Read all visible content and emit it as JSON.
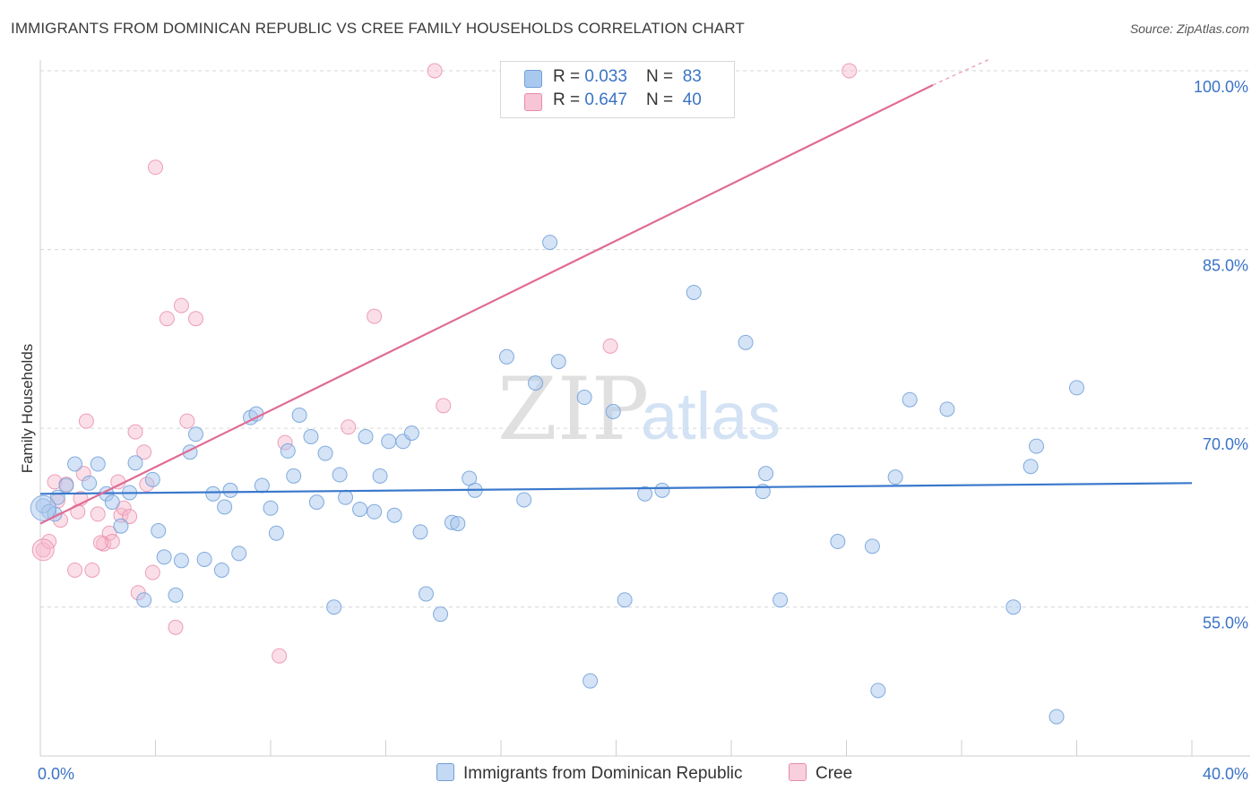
{
  "title": "IMMIGRANTS FROM DOMINICAN REPUBLIC VS CREE FAMILY HOUSEHOLDS CORRELATION CHART",
  "source": "Source: ZipAtlas.com",
  "watermark": {
    "zip": "ZIP",
    "atlas": "atlas"
  },
  "legend": {
    "blue": {
      "r_label": "R = ",
      "r_value": "0.033",
      "n_label": "N = ",
      "n_value": "83"
    },
    "pink": {
      "r_label": "R = ",
      "r_value": "0.647",
      "n_label": "N = ",
      "n_value": "40"
    }
  },
  "colors": {
    "blue_fill": "#a9c8ee",
    "blue_stroke": "#6f9fd8",
    "blue_line": "#3a78cc",
    "pink_fill": "#f6b8cb",
    "pink_stroke": "#e88aa8",
    "pink_line": "#e06b96",
    "tick_label": "#3b73c6"
  },
  "chart_data": {
    "type": "scatter",
    "title": "IMMIGRANTS FROM DOMINICAN REPUBLIC VS CREE FAMILY HOUSEHOLDS CORRELATION CHART",
    "xlabel": "",
    "ylabel": "Family Households",
    "xlim": [
      0,
      40
    ],
    "ylim": [
      42.5,
      100
    ],
    "x_tick_labels": [
      {
        "value": 0,
        "label": "0.0%"
      },
      {
        "value": 40,
        "label": "40.0%"
      }
    ],
    "y_tick_labels": [
      {
        "value": 55,
        "label": "55.0%"
      },
      {
        "value": 70,
        "label": "70.0%"
      },
      {
        "value": 85,
        "label": "85.0%"
      },
      {
        "value": 100,
        "label": "100.0%"
      }
    ],
    "grid": "horizontal-dashed",
    "series": [
      {
        "name": "Immigrants from Dominican Republic",
        "color": "#a9c8ee",
        "trend": {
          "x": [
            0,
            40
          ],
          "y": [
            64.5,
            65.4
          ]
        },
        "points": [
          [
            0.1,
            63.5
          ],
          [
            0.3,
            63.0
          ],
          [
            0.5,
            62.8
          ],
          [
            0.6,
            64.2
          ],
          [
            0.9,
            65.2
          ],
          [
            1.2,
            67.0
          ],
          [
            1.7,
            65.4
          ],
          [
            2.0,
            67.0
          ],
          [
            2.3,
            64.5
          ],
          [
            2.5,
            63.8
          ],
          [
            2.8,
            61.8
          ],
          [
            3.1,
            64.6
          ],
          [
            3.3,
            67.1
          ],
          [
            3.6,
            55.6
          ],
          [
            3.9,
            65.7
          ],
          [
            4.1,
            61.4
          ],
          [
            4.3,
            59.2
          ],
          [
            4.7,
            56.0
          ],
          [
            4.9,
            58.9
          ],
          [
            5.2,
            68.0
          ],
          [
            5.4,
            69.5
          ],
          [
            5.7,
            59.0
          ],
          [
            6.0,
            64.5
          ],
          [
            6.3,
            58.1
          ],
          [
            6.4,
            63.4
          ],
          [
            6.6,
            64.8
          ],
          [
            6.9,
            59.5
          ],
          [
            7.3,
            70.9
          ],
          [
            7.5,
            71.2
          ],
          [
            7.7,
            65.2
          ],
          [
            8.0,
            63.3
          ],
          [
            8.2,
            61.2
          ],
          [
            8.6,
            68.1
          ],
          [
            8.8,
            66.0
          ],
          [
            9.0,
            71.1
          ],
          [
            9.4,
            69.3
          ],
          [
            9.6,
            63.8
          ],
          [
            9.9,
            67.9
          ],
          [
            10.2,
            55.0
          ],
          [
            10.4,
            66.1
          ],
          [
            10.6,
            64.2
          ],
          [
            11.1,
            63.2
          ],
          [
            11.3,
            69.3
          ],
          [
            11.6,
            63.0
          ],
          [
            11.8,
            66.0
          ],
          [
            12.1,
            68.9
          ],
          [
            12.3,
            62.7
          ],
          [
            12.6,
            68.9
          ],
          [
            12.9,
            69.6
          ],
          [
            13.2,
            61.3
          ],
          [
            13.4,
            56.1
          ],
          [
            13.9,
            54.4
          ],
          [
            14.3,
            62.1
          ],
          [
            14.5,
            62.0
          ],
          [
            14.9,
            65.8
          ],
          [
            15.1,
            64.8
          ],
          [
            16.2,
            76.0
          ],
          [
            16.8,
            64.0
          ],
          [
            17.2,
            73.8
          ],
          [
            17.7,
            85.6
          ],
          [
            18.0,
            75.6
          ],
          [
            18.9,
            72.6
          ],
          [
            19.1,
            48.8
          ],
          [
            19.9,
            71.4
          ],
          [
            20.3,
            55.6
          ],
          [
            21.0,
            64.5
          ],
          [
            21.6,
            64.8
          ],
          [
            22.7,
            81.4
          ],
          [
            24.5,
            77.2
          ],
          [
            25.1,
            64.7
          ],
          [
            25.2,
            66.2
          ],
          [
            25.7,
            55.6
          ],
          [
            27.7,
            60.5
          ],
          [
            28.9,
            60.1
          ],
          [
            29.1,
            48.0
          ],
          [
            29.7,
            65.9
          ],
          [
            30.2,
            72.4
          ],
          [
            31.5,
            71.6
          ],
          [
            33.8,
            55.0
          ],
          [
            34.4,
            66.8
          ],
          [
            34.6,
            68.5
          ],
          [
            35.3,
            45.8
          ],
          [
            36.0,
            73.4
          ]
        ]
      },
      {
        "name": "Cree",
        "color": "#f6b8cb",
        "trend": {
          "x": [
            0,
            31.0
          ],
          "y": [
            62.0,
            98.8
          ],
          "dashed_to": {
            "x": 33.0,
            "y": 101.0
          }
        },
        "points": [
          [
            0.1,
            59.8
          ],
          [
            0.3,
            60.5
          ],
          [
            0.5,
            65.5
          ],
          [
            0.7,
            62.3
          ],
          [
            0.9,
            65.3
          ],
          [
            1.3,
            63.0
          ],
          [
            1.5,
            66.2
          ],
          [
            1.6,
            70.6
          ],
          [
            1.8,
            58.1
          ],
          [
            2.0,
            62.8
          ],
          [
            2.2,
            60.3
          ],
          [
            2.4,
            61.2
          ],
          [
            2.5,
            60.5
          ],
          [
            2.7,
            65.5
          ],
          [
            2.8,
            62.7
          ],
          [
            2.9,
            63.3
          ],
          [
            3.1,
            62.6
          ],
          [
            3.3,
            69.7
          ],
          [
            3.4,
            56.2
          ],
          [
            3.6,
            68.0
          ],
          [
            3.7,
            65.3
          ],
          [
            3.9,
            57.9
          ],
          [
            4.0,
            91.9
          ],
          [
            4.4,
            79.2
          ],
          [
            4.7,
            53.3
          ],
          [
            4.9,
            80.3
          ],
          [
            5.1,
            70.6
          ],
          [
            5.4,
            79.2
          ],
          [
            8.3,
            50.9
          ],
          [
            8.5,
            68.8
          ],
          [
            10.7,
            70.1
          ],
          [
            11.6,
            79.4
          ],
          [
            13.7,
            100.0
          ],
          [
            14.0,
            71.9
          ],
          [
            19.8,
            76.9
          ],
          [
            28.1,
            100.0
          ],
          [
            1.2,
            58.1
          ],
          [
            0.6,
            63.9
          ],
          [
            2.1,
            60.4
          ],
          [
            1.4,
            64.1
          ]
        ]
      }
    ]
  },
  "bottom_legend": {
    "blue_label": "Immigrants from Dominican Republic",
    "pink_label": "Cree"
  }
}
